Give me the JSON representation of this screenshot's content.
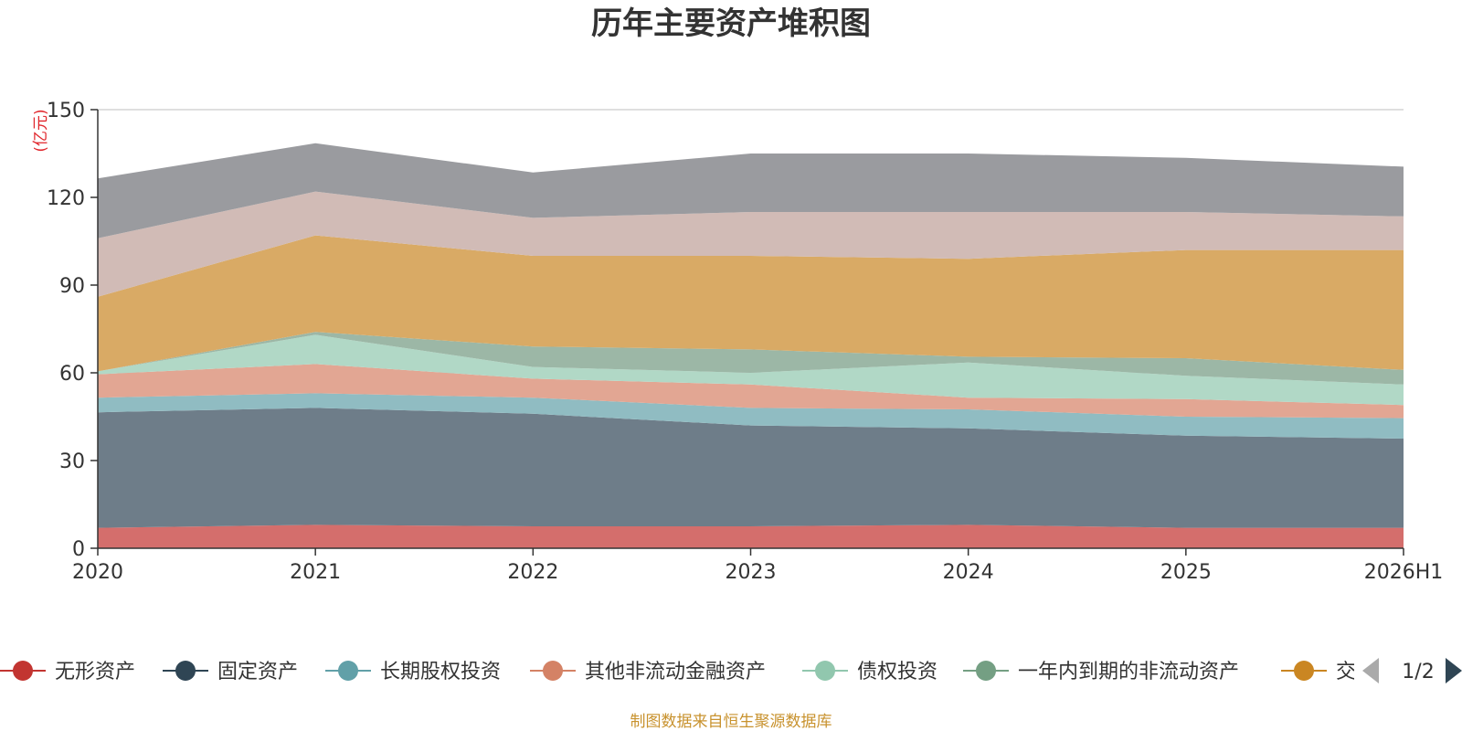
{
  "chart_data": {
    "type": "area",
    "stacked": true,
    "title": "历年主要资产堆积图",
    "unit": "(亿元)",
    "source": "制图数据来自恒生聚源数据库",
    "x": [
      "2020",
      "2021",
      "2022",
      "2023",
      "2024",
      "2025",
      "2026H1"
    ],
    "ylim": [
      0,
      150
    ],
    "yticks": [
      0,
      30,
      60,
      90,
      120,
      150
    ],
    "grid": true,
    "legend_position": "bottom",
    "legend_page": "1/2",
    "series": [
      {
        "name": "无形资产",
        "color": "#c23531",
        "fill": "#d46e6c",
        "values": [
          7,
          8,
          7.5,
          7.5,
          8,
          7,
          7
        ]
      },
      {
        "name": "固定资产",
        "color": "#2f4554",
        "fill": "#6e7d89",
        "values": [
          39.5,
          40,
          38.5,
          34.5,
          33,
          31.5,
          30.5
        ]
      },
      {
        "name": "长期股权投资",
        "color": "#61a0a8",
        "fill": "#90bcc2",
        "values": [
          5,
          5,
          5.5,
          6,
          6.5,
          6.5,
          7
        ]
      },
      {
        "name": "其他非流动金融资产",
        "color": "#d48265",
        "fill": "#e2a693",
        "values": [
          8,
          10,
          6.5,
          8,
          4,
          6,
          4.5
        ]
      },
      {
        "name": "债权投资",
        "color": "#91c7ae",
        "fill": "#b1d8c6",
        "values": [
          1,
          10,
          4,
          4,
          12,
          8,
          7
        ]
      },
      {
        "name": "一年内到期的非流动资产",
        "color": "#749f83",
        "fill": "#9cb7a6",
        "values": [
          0,
          1,
          7,
          8,
          2,
          6,
          5
        ]
      },
      {
        "name": "交易性金融资产",
        "color": "#ca8622",
        "fill": "#d9aa65",
        "values": [
          25.5,
          33,
          31,
          32,
          33.5,
          37,
          41
        ]
      },
      {
        "name": "",
        "color": "#bda29a",
        "fill": "#d1bbb6",
        "values": [
          20,
          15,
          13,
          15,
          16,
          13,
          11.5
        ]
      },
      {
        "name": "",
        "color": "#6e7074",
        "fill": "#9a9b9f",
        "values": [
          20.5,
          16.5,
          15.5,
          20,
          20,
          18.5,
          17
        ]
      }
    ]
  }
}
